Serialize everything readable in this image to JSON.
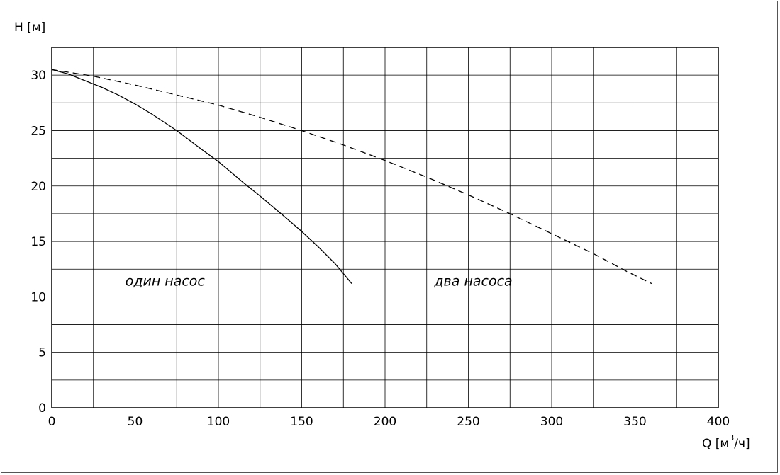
{
  "chart_data": {
    "type": "line",
    "ylabel": "H [м]",
    "xlabel_prefix": "Q [м",
    "xlabel_sup": "3",
    "xlabel_suffix": "/ч]",
    "xlim": [
      0,
      400
    ],
    "ylim": [
      0,
      32.5
    ],
    "xticks": [
      0,
      50,
      100,
      150,
      200,
      250,
      300,
      350,
      400
    ],
    "yticks": [
      0,
      5,
      10,
      15,
      20,
      25,
      30
    ],
    "grid": true,
    "series": [
      {
        "name": "один насос",
        "style": "solid",
        "x": [
          0,
          10,
          20,
          30,
          40,
          50,
          60,
          75,
          90,
          100,
          115,
          125,
          140,
          150,
          160,
          170,
          180
        ],
        "y": [
          30.5,
          30.1,
          29.5,
          28.9,
          28.2,
          27.4,
          26.5,
          25.0,
          23.3,
          22.2,
          20.3,
          19.1,
          17.2,
          15.9,
          14.5,
          13.0,
          11.2
        ]
      },
      {
        "name": "два насоса",
        "style": "dashed",
        "x": [
          0,
          25,
          50,
          75,
          100,
          125,
          150,
          175,
          200,
          225,
          250,
          275,
          300,
          325,
          345,
          360
        ],
        "y": [
          30.5,
          29.9,
          29.1,
          28.2,
          27.3,
          26.2,
          25.0,
          23.7,
          22.3,
          20.8,
          19.2,
          17.5,
          15.7,
          13.9,
          12.3,
          11.2
        ]
      }
    ],
    "annotations": [
      {
        "text": "один насос",
        "x": 68,
        "y": 11.0
      },
      {
        "text": "два насоса",
        "x": 253,
        "y": 11.0
      }
    ]
  }
}
